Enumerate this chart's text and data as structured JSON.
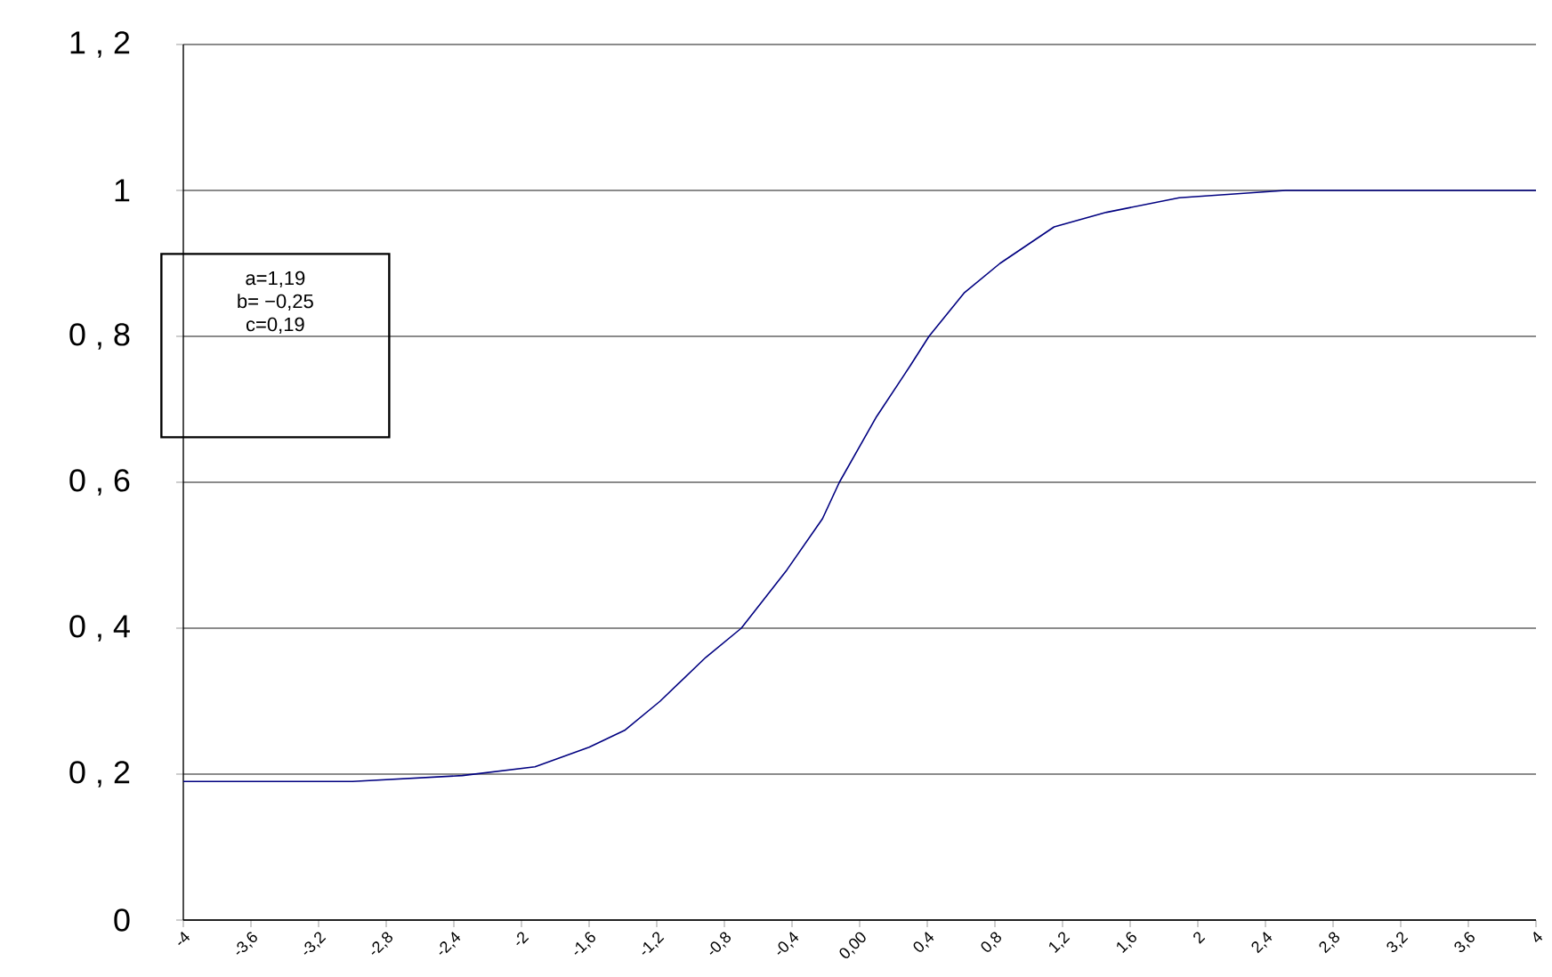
{
  "chart_data": {
    "type": "line",
    "x": [
      -4,
      -3,
      -2.35,
      -1.92,
      -1.6,
      -1.39,
      -1.18,
      -0.91,
      -0.7,
      -0.43,
      -0.22,
      -0.12,
      0.1,
      0.3,
      0.41,
      0.62,
      0.83,
      1.15,
      1.46,
      1.89,
      2.52,
      3.2,
      4
    ],
    "series": [
      {
        "color": "#000080",
        "values": [
          0.19,
          0.19,
          0.198,
          0.21,
          0.237,
          0.26,
          0.3,
          0.36,
          0.4,
          0.48,
          0.55,
          0.6,
          0.69,
          0.76,
          0.8,
          0.86,
          0.9,
          0.95,
          0.97,
          0.99,
          1.0,
          1.0,
          1.0
        ]
      }
    ],
    "xlim": [
      -4,
      4
    ],
    "xticks": [
      {
        "value": -4,
        "label": "-4"
      },
      {
        "value": -3.6,
        "label": "-3,6"
      },
      {
        "value": -3.2,
        "label": "-3,2"
      },
      {
        "value": -2.8,
        "label": "-2,8"
      },
      {
        "value": -2.4,
        "label": "-2,4"
      },
      {
        "value": -2,
        "label": "-2"
      },
      {
        "value": -1.6,
        "label": "-1,6"
      },
      {
        "value": -1.2,
        "label": "-1,2"
      },
      {
        "value": -0.8,
        "label": "-0,8"
      },
      {
        "value": -0.4,
        "label": "-0,4"
      },
      {
        "value": 0,
        "label": "0,00"
      },
      {
        "value": 0.4,
        "label": "0,4"
      },
      {
        "value": 0.8,
        "label": "0,8"
      },
      {
        "value": 1.2,
        "label": "1,2"
      },
      {
        "value": 1.6,
        "label": "1,6"
      },
      {
        "value": 2,
        "label": "2"
      },
      {
        "value": 2.4,
        "label": "2,4"
      },
      {
        "value": 2.8,
        "label": "2,8"
      },
      {
        "value": 3.2,
        "label": "3,2"
      },
      {
        "value": 3.6,
        "label": "3,6"
      },
      {
        "value": 4,
        "label": "4"
      }
    ],
    "ylim": [
      0,
      1.2
    ],
    "yticks": [
      0,
      {
        "value": 0.2,
        "label": "0 , 2"
      },
      {
        "value": 0.4,
        "label": "0 , 4"
      },
      {
        "value": 0.6,
        "label": "0 , 6"
      },
      {
        "value": 0.8,
        "label": "0 , 8"
      },
      1,
      {
        "value": 1.2,
        "label": "1 , 2"
      }
    ],
    "grid": "y",
    "marker": "none",
    "line_style": "solid",
    "annotations": [
      "a=1,19",
      "b= −0,25",
      "c=0,19"
    ]
  }
}
